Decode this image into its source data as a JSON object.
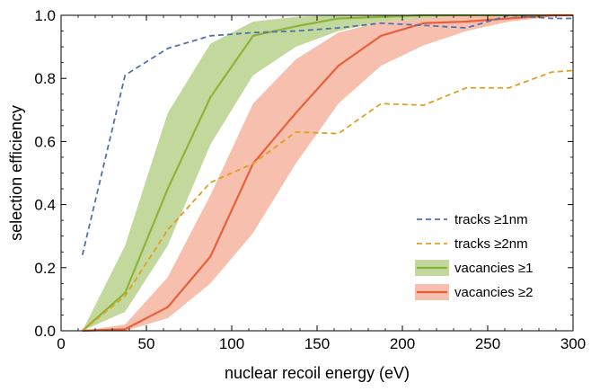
{
  "chart_data": {
    "type": "line",
    "title": "",
    "xlabel": "nuclear recoil energy (eV)",
    "ylabel": "selection efficiency",
    "xlim": [
      0,
      300
    ],
    "ylim": [
      0,
      1.0
    ],
    "x_ticks": [
      0,
      50,
      100,
      150,
      200,
      250,
      300
    ],
    "y_ticks": [
      0.0,
      0.2,
      0.4,
      0.6,
      0.8,
      1.0
    ],
    "x_tick_labels": [
      "0",
      "50",
      "100",
      "150",
      "200",
      "250",
      "300"
    ],
    "y_tick_labels": [
      "0.0",
      "0.2",
      "0.4",
      "0.6",
      "0.8",
      "1.0"
    ],
    "grid": false,
    "legend_position": "bottom-right",
    "series": [
      {
        "name": "tracks ≥1nm",
        "style": "dashed",
        "color": "#4c72b0",
        "x": [
          12.5,
          37.5,
          62.5,
          87.5,
          112.5,
          137.5,
          162.5,
          187.5,
          212.5,
          237.5,
          262.5,
          287.5,
          300
        ],
        "y": [
          0.24,
          0.81,
          0.895,
          0.935,
          0.945,
          0.95,
          0.96,
          0.975,
          0.968,
          0.96,
          1.0,
          0.99,
          0.99
        ]
      },
      {
        "name": "tracks ≥2nm",
        "style": "dashed",
        "color": "#e0a020",
        "x": [
          12.5,
          37.5,
          62.5,
          87.5,
          112.5,
          137.5,
          162.5,
          187.5,
          212.5,
          237.5,
          262.5,
          287.5,
          300
        ],
        "y": [
          0.0,
          0.11,
          0.32,
          0.47,
          0.53,
          0.63,
          0.625,
          0.72,
          0.715,
          0.77,
          0.77,
          0.82,
          0.825
        ]
      },
      {
        "name": "vacancies ≥1",
        "style": "solid",
        "color": "#8db33a",
        "band_color": "#c3d89c",
        "x": [
          12.5,
          37.5,
          62.5,
          87.5,
          112.5,
          137.5,
          162.5,
          187.5,
          212.5,
          237.5,
          262.5,
          287.5,
          300
        ],
        "y": [
          0.0,
          0.12,
          0.45,
          0.74,
          0.935,
          0.965,
          0.99,
          0.995,
          1.0,
          1.0,
          1.0,
          1.0,
          1.0
        ],
        "lower": [
          0.0,
          0.06,
          0.27,
          0.59,
          0.81,
          0.9,
          0.95,
          0.98,
          0.99,
          1.0,
          1.0,
          1.0,
          1.0
        ],
        "upper": [
          0.0,
          0.27,
          0.69,
          0.91,
          0.98,
          0.995,
          1.0,
          1.0,
          1.0,
          1.0,
          1.0,
          1.0,
          1.0
        ]
      },
      {
        "name": "vacancies ≥2",
        "style": "solid",
        "color": "#e8603a",
        "band_color": "#f6bfae",
        "x": [
          12.5,
          37.5,
          62.5,
          87.5,
          112.5,
          137.5,
          162.5,
          187.5,
          212.5,
          237.5,
          262.5,
          287.5,
          300
        ],
        "y": [
          0.0,
          0.005,
          0.075,
          0.235,
          0.53,
          0.69,
          0.84,
          0.935,
          0.975,
          0.98,
          0.99,
          1.0,
          1.0
        ],
        "lower": [
          0.0,
          0.0,
          0.04,
          0.15,
          0.31,
          0.53,
          0.72,
          0.84,
          0.905,
          0.95,
          0.98,
          0.995,
          1.0
        ],
        "upper": [
          0.0,
          0.02,
          0.17,
          0.43,
          0.72,
          0.86,
          0.945,
          0.98,
          0.99,
          1.0,
          1.0,
          1.0,
          1.0
        ]
      }
    ]
  }
}
